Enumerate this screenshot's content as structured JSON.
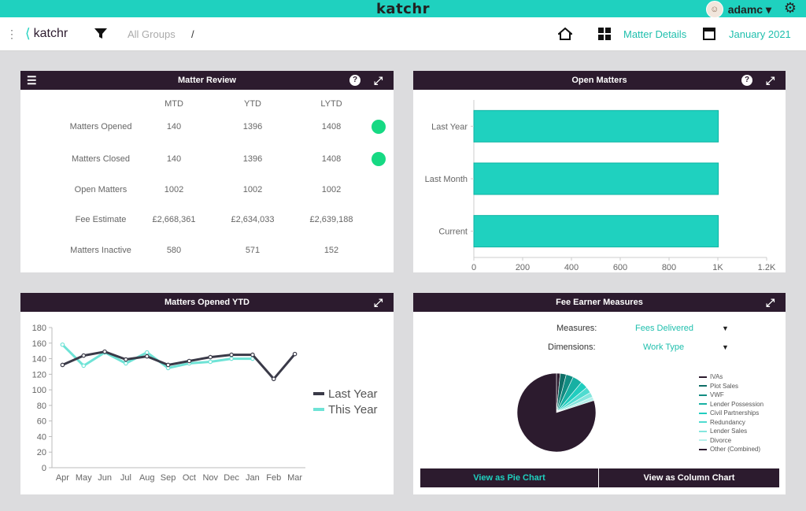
{
  "app": {
    "title": "katchr",
    "user": "adamc ▾"
  },
  "toolbar": {
    "logo_text": "katchr",
    "group": "All Groups",
    "separator": "/",
    "view_label": "Matter Details",
    "date_label": "January 2021"
  },
  "matter_review": {
    "title": "Matter Review",
    "columns": [
      "MTD",
      "YTD",
      "LYTD"
    ],
    "rows": [
      {
        "label": "Matters Opened",
        "values": [
          "140",
          "1396",
          "1408"
        ],
        "status": "#16d983"
      },
      {
        "label": "Matters Closed",
        "values": [
          "140",
          "1396",
          "1408"
        ],
        "status": "#16d983"
      },
      {
        "label": "Open Matters",
        "values": [
          "1002",
          "1002",
          "1002"
        ]
      },
      {
        "label": "Fee Estimate",
        "values": [
          "£2,668,361",
          "£2,634,033",
          "£2,639,188"
        ]
      },
      {
        "label": "Matters Inactive",
        "values": [
          "580",
          "571",
          "152"
        ]
      }
    ]
  },
  "open_matters": {
    "title": "Open Matters",
    "chart_data": {
      "type": "bar",
      "orientation": "horizontal",
      "categories": [
        "Last Year",
        "Last Month",
        "Current"
      ],
      "values": [
        1002,
        1002,
        1002
      ],
      "xlim": [
        0,
        1200
      ],
      "ticks": [
        0,
        200,
        400,
        600,
        800,
        1000,
        1200
      ],
      "tick_labels": [
        "0",
        "200",
        "400",
        "600",
        "800",
        "1K",
        "1.2K"
      ],
      "color": "#1fd1bf"
    }
  },
  "matters_opened": {
    "title": "Matters Opened YTD",
    "chart_data": {
      "type": "line",
      "x": [
        "Apr",
        "May",
        "Jun",
        "Jul",
        "Aug",
        "Sep",
        "Oct",
        "Nov",
        "Dec",
        "Jan",
        "Feb",
        "Mar"
      ],
      "ylim": [
        0,
        180
      ],
      "yticks": [
        0,
        20,
        40,
        60,
        80,
        100,
        120,
        140,
        160,
        180
      ],
      "series": [
        {
          "name": "Last Year",
          "color": "#3a3a48",
          "values": [
            132,
            144,
            149,
            139,
            143,
            132,
            137,
            142,
            145,
            145,
            114,
            146
          ]
        },
        {
          "name": "This Year",
          "color": "#6fe3d6",
          "values": [
            158,
            131,
            148,
            134,
            148,
            128,
            134,
            136,
            140,
            140,
            null,
            null
          ]
        }
      ]
    }
  },
  "fee_earner": {
    "title": "Fee Earner Measures",
    "measures_label": "Measures:",
    "measures_value": "Fees Delivered",
    "dimensions_label": "Dimensions:",
    "dimensions_value": "Work Type",
    "caret": "▼",
    "pie_button": "View as Pie Chart",
    "column_button": "View as Column Chart",
    "chart_data": {
      "type": "pie",
      "labels": [
        "IVAs",
        "Plot Sales",
        "VWF",
        "Lender Possession",
        "Civil Partnerships",
        "Redundancy",
        "Lender Sales",
        "Divorce",
        "Other (Combined)"
      ],
      "values": [
        1.5,
        2.5,
        3,
        4,
        3,
        2.5,
        2,
        1.5,
        80
      ],
      "colors": [
        "#2c1b2e",
        "#0f6d66",
        "#128c82",
        "#17b0a3",
        "#20cdbf",
        "#4fdbd0",
        "#84e6de",
        "#b7f0eb",
        "#2c1b2e"
      ]
    }
  }
}
